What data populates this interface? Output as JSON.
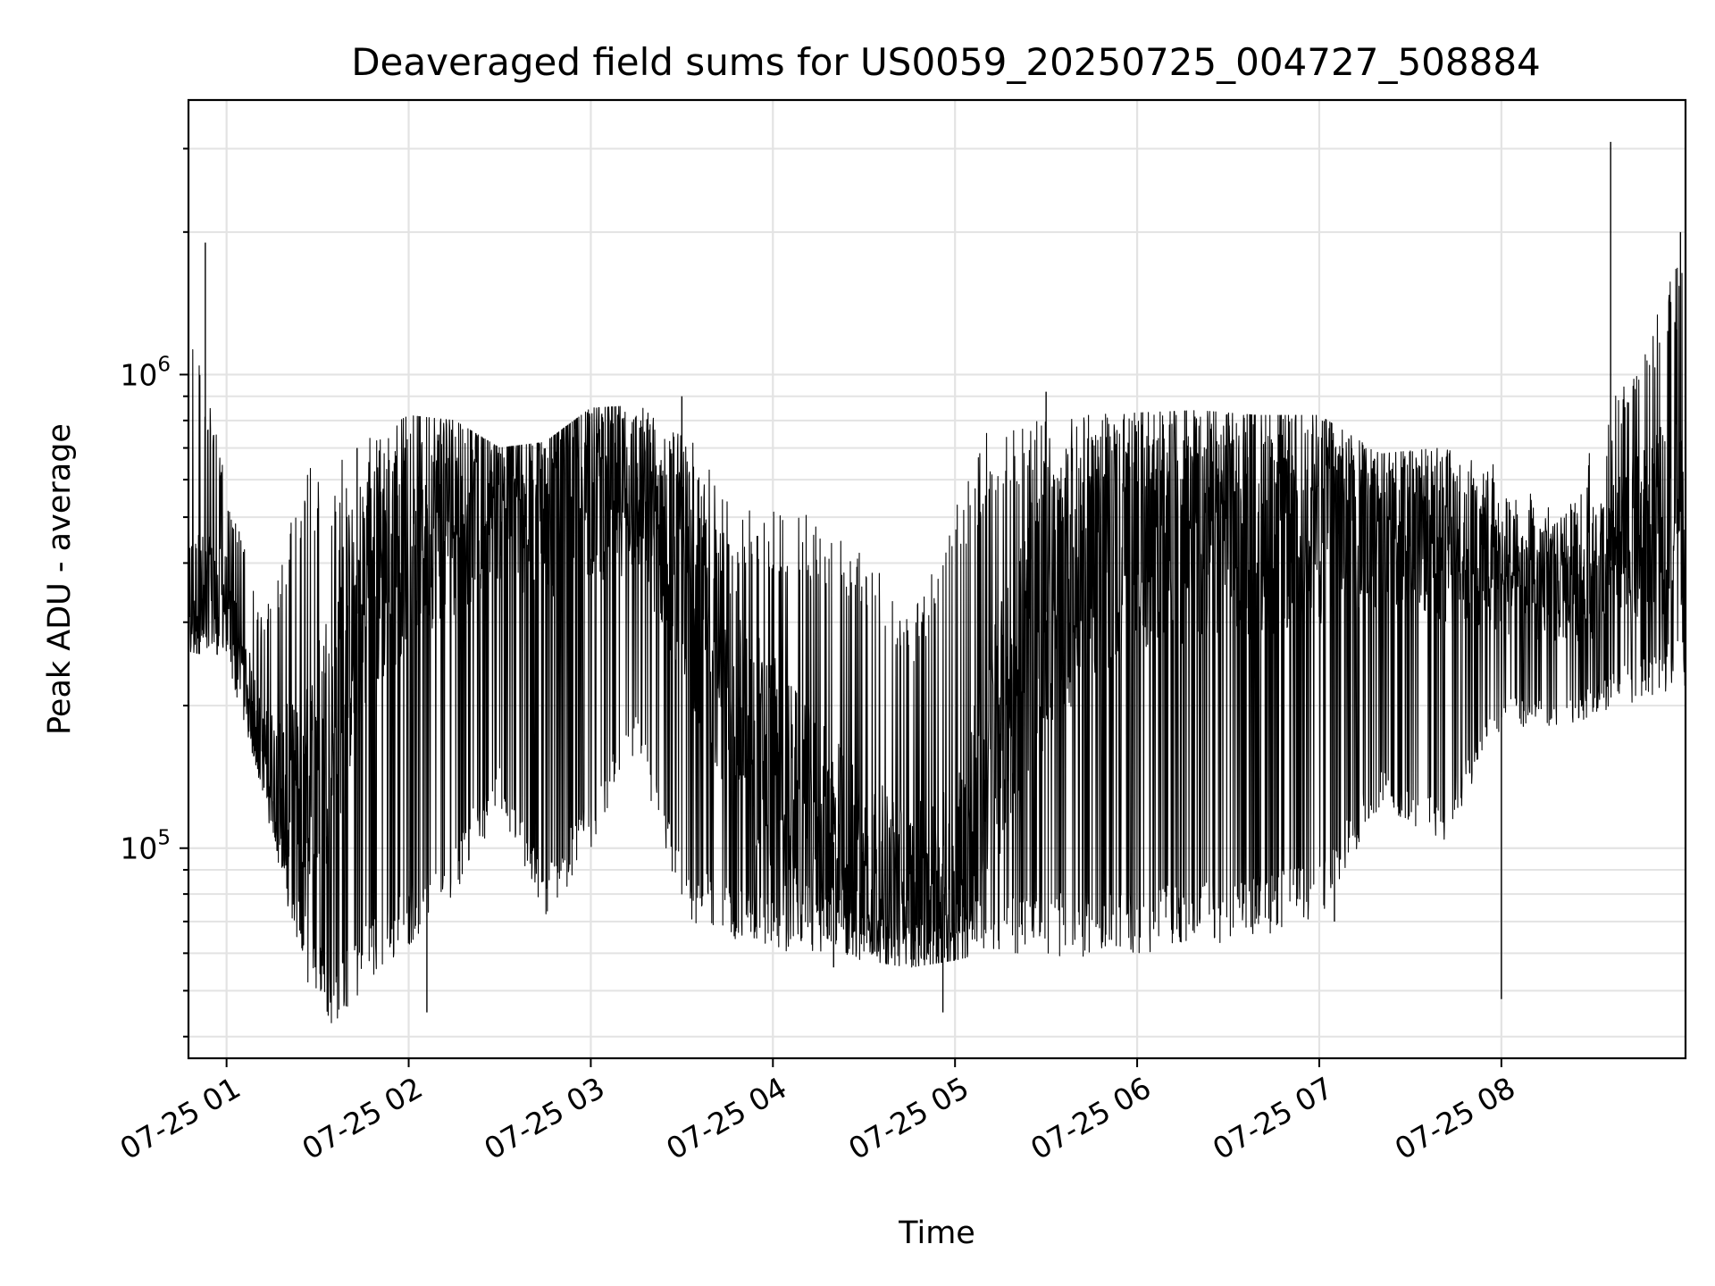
{
  "chart_data": {
    "type": "line",
    "title": "Deaveraged field sums for US0059_20250725_004727_508884",
    "xlabel": "Time",
    "ylabel": "Peak ADU - average",
    "y_scale": "log",
    "grid": "major and minor",
    "ylim": [
      36000,
      3800000
    ],
    "xlim": [
      "2025-07-25 00:47:27",
      "2025-07-25 09:00:40"
    ],
    "x_ticks": [
      {
        "t": "2025-07-25 01:00",
        "label": "07-25 01"
      },
      {
        "t": "2025-07-25 02:00",
        "label": "07-25 02"
      },
      {
        "t": "2025-07-25 03:00",
        "label": "07-25 03"
      },
      {
        "t": "2025-07-25 04:00",
        "label": "07-25 04"
      },
      {
        "t": "2025-07-25 05:00",
        "label": "07-25 05"
      },
      {
        "t": "2025-07-25 06:00",
        "label": "07-25 06"
      },
      {
        "t": "2025-07-25 07:00",
        "label": "07-25 07"
      },
      {
        "t": "2025-07-25 08:00",
        "label": "07-25 08"
      }
    ],
    "y_ticks": [
      {
        "value": 100000,
        "base": "10",
        "exp": "5"
      },
      {
        "value": 1000000,
        "base": "10",
        "exp": "6"
      }
    ],
    "series": [
      {
        "color": "#000000",
        "envelope": [
          {
            "t": "2025-07-25 00:48",
            "low": 260000,
            "high": 1300000,
            "median": 330000
          },
          {
            "t": "2025-07-25 01:00",
            "low": 250000,
            "high": 600000,
            "median": 340000
          },
          {
            "t": "2025-07-25 01:12",
            "low": 130000,
            "high": 300000,
            "median": 160000
          },
          {
            "t": "2025-07-25 01:25",
            "low": 52000,
            "high": 620000,
            "median": 110000
          },
          {
            "t": "2025-07-25 01:35",
            "low": 42000,
            "high": 700000,
            "median": 200000
          },
          {
            "t": "2025-07-25 01:45",
            "low": 50000,
            "high": 720000,
            "median": 350000
          },
          {
            "t": "2025-07-25 02:00",
            "low": 62000,
            "high": 820000,
            "median": 520000
          },
          {
            "t": "2025-07-25 02:15",
            "low": 80000,
            "high": 800000,
            "median": 550000
          },
          {
            "t": "2025-07-25 02:30",
            "low": 120000,
            "high": 700000,
            "median": 560000
          },
          {
            "t": "2025-07-25 02:45",
            "low": 70000,
            "high": 720000,
            "median": 580000
          },
          {
            "t": "2025-07-25 03:00",
            "low": 100000,
            "high": 850000,
            "median": 620000
          },
          {
            "t": "2025-07-25 03:15",
            "low": 160000,
            "high": 860000,
            "median": 580000
          },
          {
            "t": "2025-07-25 03:30",
            "low": 70000,
            "high": 800000,
            "median": 420000
          },
          {
            "t": "2025-07-25 03:45",
            "low": 65000,
            "high": 560000,
            "median": 220000
          },
          {
            "t": "2025-07-25 04:00",
            "low": 60000,
            "high": 520000,
            "median": 150000
          },
          {
            "t": "2025-07-25 04:15",
            "low": 60000,
            "high": 500000,
            "median": 110000
          },
          {
            "t": "2025-07-25 04:30",
            "low": 58000,
            "high": 430000,
            "median": 90000
          },
          {
            "t": "2025-07-25 04:45",
            "low": 56000,
            "high": 300000,
            "median": 80000
          },
          {
            "t": "2025-07-25 05:00",
            "low": 58000,
            "high": 520000,
            "median": 80000
          },
          {
            "t": "2025-07-25 05:10",
            "low": 60000,
            "high": 760000,
            "median": 150000
          },
          {
            "t": "2025-07-25 05:25",
            "low": 60000,
            "high": 800000,
            "median": 280000
          },
          {
            "t": "2025-07-25 05:40",
            "low": 58000,
            "high": 820000,
            "median": 400000
          },
          {
            "t": "2025-07-25 06:00",
            "low": 60000,
            "high": 830000,
            "median": 480000
          },
          {
            "t": "2025-07-25 06:20",
            "low": 62000,
            "high": 840000,
            "median": 500000
          },
          {
            "t": "2025-07-25 06:40",
            "low": 65000,
            "high": 820000,
            "median": 520000
          },
          {
            "t": "2025-07-25 07:00",
            "low": 70000,
            "high": 820000,
            "median": 540000
          },
          {
            "t": "2025-07-25 07:20",
            "low": 120000,
            "high": 680000,
            "median": 500000
          },
          {
            "t": "2025-07-25 07:40",
            "low": 100000,
            "high": 700000,
            "median": 480000
          },
          {
            "t": "2025-07-25 08:00",
            "low": 180000,
            "high": 640000,
            "median": 380000
          },
          {
            "t": "2025-07-25 08:20",
            "low": 180000,
            "high": 500000,
            "median": 350000
          },
          {
            "t": "2025-07-25 08:40",
            "low": 200000,
            "high": 1000000,
            "median": 420000
          },
          {
            "t": "2025-07-25 09:00",
            "low": 220000,
            "high": 1800000,
            "median": 520000
          }
        ],
        "spikes": [
          {
            "t": "2025-07-25 00:53",
            "value": 1900000
          },
          {
            "t": "2025-07-25 01:43",
            "value": 700000
          },
          {
            "t": "2025-07-25 02:06",
            "value": 45000
          },
          {
            "t": "2025-07-25 03:30",
            "value": 900000
          },
          {
            "t": "2025-07-25 04:20",
            "value": 56000
          },
          {
            "t": "2025-07-25 04:56",
            "value": 45000
          },
          {
            "t": "2025-07-25 05:30",
            "value": 920000
          },
          {
            "t": "2025-07-25 07:05",
            "value": 70000
          },
          {
            "t": "2025-07-25 08:00",
            "value": 48000
          },
          {
            "t": "2025-07-25 08:36",
            "value": 3100000
          },
          {
            "t": "2025-07-25 08:59",
            "value": 2000000
          }
        ]
      }
    ]
  }
}
